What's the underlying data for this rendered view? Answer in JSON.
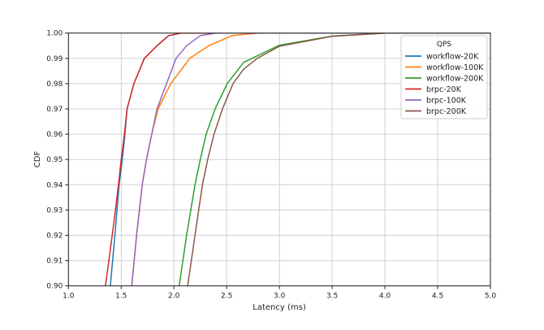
{
  "chart_data": {
    "type": "line",
    "title": "",
    "xlabel": "Latency (ms)",
    "ylabel": "CDF",
    "xlim": [
      1.0,
      5.0
    ],
    "ylim": [
      0.9,
      1.0
    ],
    "xticks": [
      "1.0",
      "1.5",
      "2.0",
      "2.5",
      "3.0",
      "3.5",
      "4.0",
      "4.5",
      "5.0"
    ],
    "yticks": [
      "0.90",
      "0.91",
      "0.92",
      "0.93",
      "0.94",
      "0.95",
      "0.96",
      "0.97",
      "0.98",
      "0.99",
      "1.00"
    ],
    "grid": true,
    "legend": {
      "title": "QPS",
      "placement": "top-right"
    },
    "series": [
      {
        "name": "workflow-20K",
        "color": "#1f77b4",
        "points": [
          [
            1.397,
            0.9
          ],
          [
            1.44,
            0.92
          ],
          [
            1.48,
            0.94
          ],
          [
            1.51,
            0.95
          ],
          [
            1.536,
            0.96
          ],
          [
            1.556,
            0.97
          ],
          [
            1.62,
            0.98
          ],
          [
            1.72,
            0.99
          ],
          [
            1.84,
            0.995
          ],
          [
            1.95,
            0.999
          ],
          [
            2.07,
            1.0
          ],
          [
            5.0,
            1.0
          ]
        ]
      },
      {
        "name": "workflow-100K",
        "color": "#ff7f0e",
        "points": [
          [
            1.6,
            0.9
          ],
          [
            1.646,
            0.92
          ],
          [
            1.7,
            0.94
          ],
          [
            1.74,
            0.95
          ],
          [
            1.79,
            0.96
          ],
          [
            1.85,
            0.97
          ],
          [
            1.97,
            0.98
          ],
          [
            2.15,
            0.99
          ],
          [
            2.33,
            0.995
          ],
          [
            2.55,
            0.999
          ],
          [
            2.8,
            1.0
          ],
          [
            5.0,
            1.0
          ]
        ]
      },
      {
        "name": "workflow-200K",
        "color": "#2ca02c",
        "points": [
          [
            2.05,
            0.9
          ],
          [
            2.12,
            0.92
          ],
          [
            2.2,
            0.94
          ],
          [
            2.25,
            0.95
          ],
          [
            2.305,
            0.96
          ],
          [
            2.39,
            0.97
          ],
          [
            2.505,
            0.98
          ],
          [
            2.66,
            0.9884
          ],
          [
            2.74,
            0.99
          ],
          [
            3.0,
            0.9952
          ],
          [
            3.5,
            0.9988
          ],
          [
            4.0,
            1.0
          ],
          [
            5.0,
            1.0
          ]
        ]
      },
      {
        "name": "brpc-20K",
        "color": "#d62728",
        "points": [
          [
            1.351,
            0.9
          ],
          [
            1.415,
            0.92
          ],
          [
            1.446,
            0.93
          ],
          [
            1.474,
            0.94
          ],
          [
            1.5,
            0.95
          ],
          [
            1.53,
            0.96
          ],
          [
            1.556,
            0.97
          ],
          [
            1.62,
            0.98
          ],
          [
            1.72,
            0.99
          ],
          [
            1.84,
            0.995
          ],
          [
            1.95,
            0.999
          ],
          [
            2.07,
            1.0
          ],
          [
            5.0,
            1.0
          ]
        ]
      },
      {
        "name": "brpc-100K",
        "color": "#9467bd",
        "points": [
          [
            1.6,
            0.9
          ],
          [
            1.646,
            0.92
          ],
          [
            1.7,
            0.94
          ],
          [
            1.74,
            0.95
          ],
          [
            1.79,
            0.96
          ],
          [
            1.84,
            0.97
          ],
          [
            1.93,
            0.98
          ],
          [
            2.02,
            0.99
          ],
          [
            2.12,
            0.995
          ],
          [
            2.25,
            0.999
          ],
          [
            2.4,
            1.0
          ],
          [
            5.0,
            1.0
          ]
        ]
      },
      {
        "name": "brpc-200K",
        "color": "#8c564b",
        "points": [
          [
            2.13,
            0.9
          ],
          [
            2.2,
            0.92
          ],
          [
            2.27,
            0.94
          ],
          [
            2.32,
            0.95
          ],
          [
            2.38,
            0.96
          ],
          [
            2.46,
            0.97
          ],
          [
            2.56,
            0.98
          ],
          [
            2.66,
            0.9857
          ],
          [
            2.79,
            0.99
          ],
          [
            3.0,
            0.9948
          ],
          [
            3.5,
            0.9987
          ],
          [
            4.0,
            1.0
          ],
          [
            5.0,
            1.0
          ]
        ]
      }
    ]
  }
}
